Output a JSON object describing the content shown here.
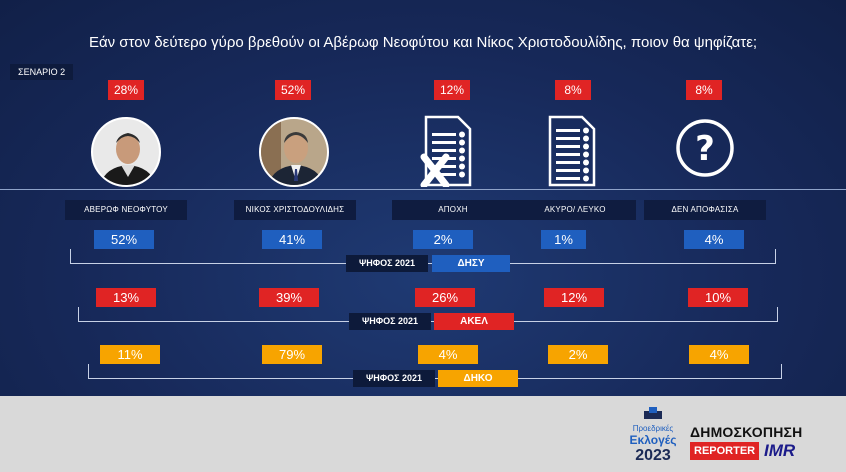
{
  "title": "Εάν στον δεύτερο γύρο βρεθούν οι Αβέρωφ Νεοφύτου και Νίκος Χριστοδουλίδης, ποιον θα ψηφίζατε;",
  "scenario_label": "ΣΕΝΑΡΙΟ 2",
  "colors": {
    "background": "#17295a",
    "red": "#e02424",
    "blue": "#1f5fbf",
    "orange": "#f7a400"
  },
  "chart_data": {
    "type": "table",
    "categories": [
      "ΑΒΕΡΩΦ ΝΕΟΦΥΤΟΥ",
      "ΝΙΚΟΣ ΧΡΙΣΤΟΔΟΥΛΙΔΗΣ",
      "ΑΠΟΧΗ",
      "ΑΚΥΡΟ/ ΛΕΥΚΟ",
      "ΔΕΝ ΑΠΟΦΑΣΙΣΑ"
    ],
    "overall": [
      "28%",
      "52%",
      "12%",
      "8%",
      "8%"
    ],
    "series": [
      {
        "name": "ΔΗΣΥ",
        "vote_label": "ΨΗΦΟΣ 2021",
        "color": "#1f5fbf",
        "values": [
          "52%",
          "41%",
          "2%",
          "1%",
          "4%"
        ]
      },
      {
        "name": "ΑΚΕΛ",
        "vote_label": "ΨΗΦΟΣ 2021",
        "color": "#e02424",
        "values": [
          "13%",
          "39%",
          "26%",
          "12%",
          "10%"
        ]
      },
      {
        "name": "ΔΗΚΟ",
        "vote_label": "ΨΗΦΟΣ 2021",
        "color": "#f7a400",
        "values": [
          "11%",
          "79%",
          "4%",
          "2%",
          "4%"
        ]
      }
    ]
  },
  "icons": [
    "candidate-photo-averof",
    "candidate-photo-christodoulides",
    "ballot-crossed-icon",
    "ballot-icon",
    "question-mark-icon"
  ],
  "footer": {
    "logo_line1": "Προεδρικές",
    "logo_line2": "Εκλογές",
    "logo_year": "2023",
    "poll_title": "ΔΗΜΟΣΚΟΠΗΣΗ",
    "reporter": "REPORTER",
    "imr": "IMR"
  }
}
